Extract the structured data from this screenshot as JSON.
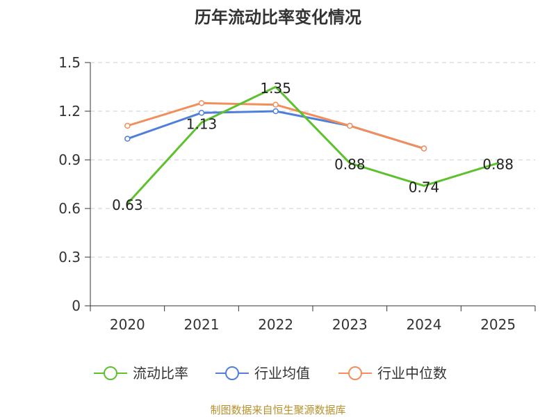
{
  "chart_data": {
    "type": "line",
    "title": "历年流动比率变化情况",
    "categories": [
      "2020",
      "2021",
      "2022",
      "2023",
      "2024",
      "2025"
    ],
    "yticks": [
      "0",
      "0.3",
      "0.6",
      "0.9",
      "1.2",
      "1.5"
    ],
    "ylim": [
      0,
      1.5
    ],
    "grid": true,
    "legend_position": "bottom",
    "series": [
      {
        "name": "流动比率",
        "color": "#5dc12e",
        "values": [
          0.63,
          1.13,
          1.35,
          0.88,
          0.74,
          0.88
        ],
        "labels": [
          "0.63",
          "1.13",
          "1.35",
          "0.88",
          "0.74",
          "0.88"
        ]
      },
      {
        "name": "行业均值",
        "color": "#4f7fdb",
        "values": [
          1.03,
          1.19,
          1.2,
          1.11,
          0.97,
          null
        ]
      },
      {
        "name": "行业中位数",
        "color": "#f28e5a",
        "values": [
          1.11,
          1.25,
          1.24,
          1.11,
          0.97,
          null
        ]
      }
    ],
    "source": "制图数据来自恒生聚源数据库"
  }
}
